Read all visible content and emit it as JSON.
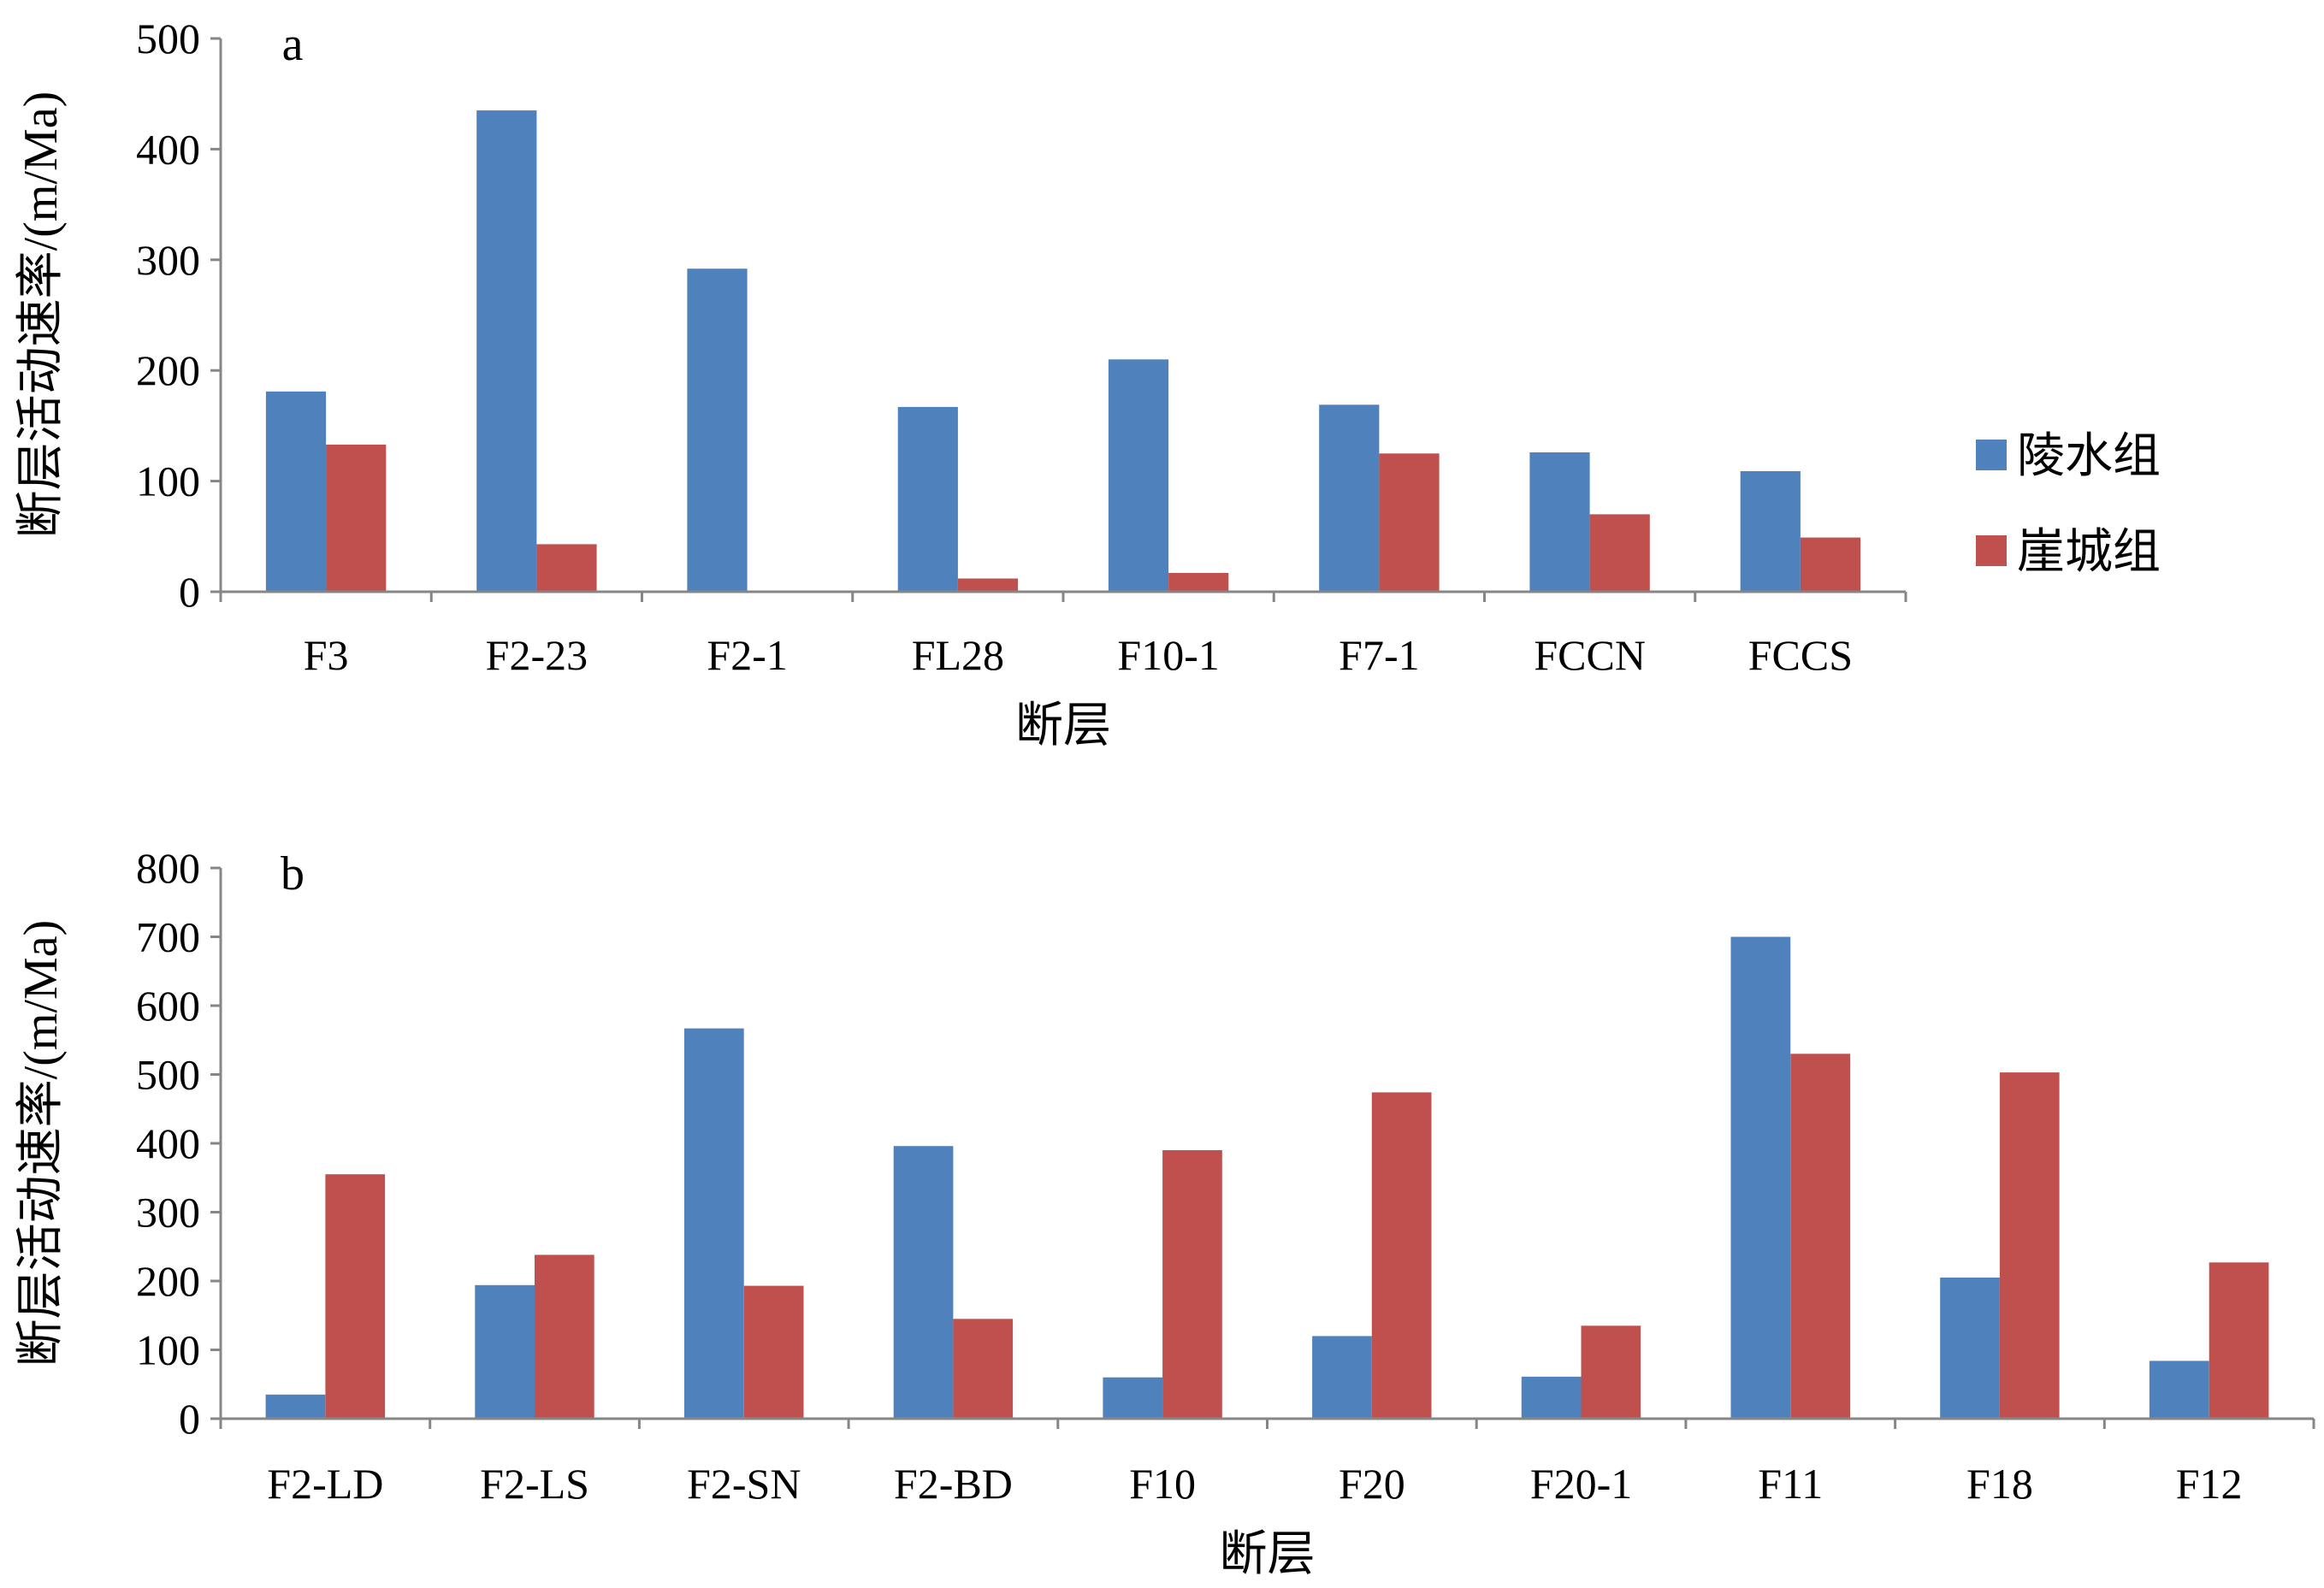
{
  "colors": {
    "series1": "#4F81BD",
    "series2": "#C0504D",
    "axis": "#868686"
  },
  "chart_data": [
    {
      "type": "bar",
      "panel_label": "a",
      "categories": [
        "F3",
        "F2-23",
        "F2-1",
        "FL28",
        "F10-1",
        "F7-1",
        "FCCN",
        "FCCS"
      ],
      "series": [
        {
          "name": "陵水组",
          "values": [
            181,
            435,
            292,
            167,
            210,
            169,
            126,
            109
          ]
        },
        {
          "name": "崖城组",
          "values": [
            133,
            43,
            0,
            12,
            17,
            125,
            70,
            49
          ]
        }
      ],
      "xlabel": "断层",
      "ylabel": "断层活动速率/(m/Ma)",
      "ylim": [
        0,
        500
      ],
      "yticks": [
        0,
        100,
        200,
        300,
        400,
        500
      ],
      "legend": "right",
      "grid": false
    },
    {
      "type": "bar",
      "panel_label": "b",
      "categories": [
        "F2-LD",
        "F2-LS",
        "F2-SN",
        "F2-BD",
        "F10",
        "F20",
        "F20-1",
        "F11",
        "F18",
        "F12"
      ],
      "series": [
        {
          "name": "陵水组",
          "values": [
            35,
            194,
            567,
            396,
            60,
            120,
            61,
            700,
            205,
            84
          ]
        },
        {
          "name": "崖城组",
          "values": [
            355,
            238,
            193,
            145,
            390,
            474,
            135,
            530,
            503,
            227
          ]
        }
      ],
      "xlabel": "断层",
      "ylabel": "断层活动速率/(m/Ma)",
      "ylim": [
        0,
        800
      ],
      "yticks": [
        0,
        100,
        200,
        300,
        400,
        500,
        600,
        700,
        800
      ],
      "grid": false
    }
  ]
}
